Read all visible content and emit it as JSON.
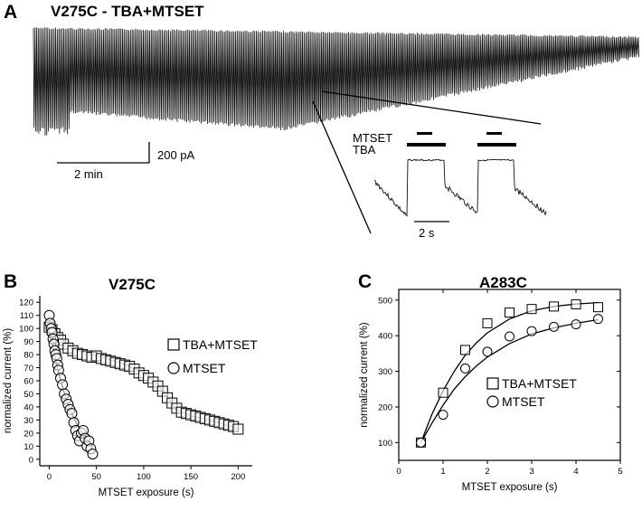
{
  "panel_a": {
    "letter": "A",
    "title": "V275C - TBA+MTSET",
    "time_scale_label": "2 min",
    "current_scale_label": "200 pA",
    "inset": {
      "mtset_label": "MTSET",
      "tba_label": "TBA",
      "time_scale_label": "2 s"
    }
  },
  "panel_b": {
    "letter": "B"
  },
  "panel_c": {
    "letter": "C"
  },
  "chart_data": [
    {
      "type": "scatter",
      "title": "V275C",
      "xlabel": "MTSET exposure (s)",
      "ylabel": "normalized current (%)",
      "xlim": [
        -10,
        215
      ],
      "ylim": [
        -5,
        125
      ],
      "xticks": [
        0,
        50,
        100,
        150,
        200
      ],
      "yticks": [
        0,
        10,
        20,
        30,
        40,
        50,
        60,
        70,
        80,
        90,
        100,
        110,
        120
      ],
      "legend_position": "right",
      "series": [
        {
          "name": "TBA+MTSET",
          "marker": "square",
          "x": [
            0,
            3,
            6,
            9,
            12,
            15,
            20,
            25,
            30,
            35,
            40,
            45,
            50,
            55,
            60,
            65,
            70,
            75,
            80,
            85,
            90,
            95,
            100,
            105,
            110,
            115,
            120,
            125,
            130,
            135,
            140,
            145,
            150,
            155,
            160,
            165,
            170,
            175,
            180,
            185,
            190,
            195,
            200
          ],
          "y": [
            101,
            99,
            96,
            93,
            91,
            88,
            85,
            83,
            81,
            80,
            79,
            78,
            79,
            77,
            76,
            75,
            74,
            73,
            72,
            71,
            69,
            66,
            64,
            62,
            59,
            56,
            52,
            47,
            43,
            39,
            36,
            35,
            34,
            33,
            32,
            31,
            30,
            29,
            28,
            27,
            26,
            25,
            23
          ]
        },
        {
          "name": "MTSET",
          "marker": "circle",
          "x": [
            0,
            1,
            2,
            3,
            4,
            5,
            6,
            7,
            8,
            9,
            10,
            12,
            14,
            16,
            18,
            20,
            22,
            24,
            26,
            28,
            30,
            32,
            34,
            36,
            38,
            40,
            42,
            44,
            46
          ],
          "y": [
            110,
            104,
            100,
            97,
            92,
            88,
            83,
            80,
            77,
            72,
            68,
            62,
            57,
            50,
            46,
            42,
            38,
            35,
            28,
            22,
            18,
            14,
            20,
            22,
            16,
            10,
            14,
            8,
            4
          ]
        }
      ],
      "fits": [
        {
          "series": "TBA+MTSET",
          "x": [
            0,
            25,
            50,
            75,
            100,
            115,
            125,
            135,
            150,
            175,
            200
          ],
          "y": [
            101,
            84,
            79,
            74,
            66,
            57,
            48,
            38,
            33,
            29,
            23
          ]
        },
        {
          "series": "MTSET",
          "x": [
            0,
            5,
            10,
            15,
            20,
            25,
            30,
            35,
            40,
            45
          ],
          "y": [
            100,
            82,
            66,
            53,
            42,
            33,
            26,
            20,
            15,
            11
          ]
        }
      ]
    },
    {
      "type": "scatter",
      "title": "A283C",
      "xlabel": "MTSET exposure (s)",
      "ylabel": "normalized current (%)",
      "xlim": [
        0,
        5
      ],
      "ylim": [
        50,
        530
      ],
      "xticks": [
        0,
        1,
        2,
        3,
        4,
        5
      ],
      "yticks": [
        100,
        200,
        300,
        400,
        500
      ],
      "legend_position": "bottom-right",
      "series": [
        {
          "name": "TBA+MTSET",
          "marker": "square",
          "x": [
            0.5,
            1.0,
            1.5,
            2.0,
            2.5,
            3.0,
            3.5,
            4.0,
            4.5
          ],
          "y": [
            100,
            240,
            360,
            435,
            465,
            475,
            482,
            488,
            480
          ]
        },
        {
          "name": "MTSET",
          "marker": "circle",
          "x": [
            0.5,
            1.0,
            1.5,
            2.0,
            2.5,
            3.0,
            3.5,
            4.0,
            4.5
          ],
          "y": [
            100,
            178,
            308,
            355,
            398,
            413,
            425,
            432,
            447
          ]
        }
      ],
      "fits": [
        {
          "series": "TBA+MTSET",
          "x": [
            0.5,
            0.75,
            1.0,
            1.25,
            1.5,
            1.75,
            2.0,
            2.5,
            3.0,
            3.5,
            4.0,
            4.5
          ],
          "y": [
            100,
            180,
            245,
            300,
            345,
            380,
            408,
            447,
            470,
            482,
            489,
            493
          ]
        },
        {
          "series": "MTSET",
          "x": [
            0.5,
            0.75,
            1.0,
            1.25,
            1.5,
            1.75,
            2.0,
            2.5,
            3.0,
            3.5,
            4.0,
            4.5
          ],
          "y": [
            100,
            155,
            205,
            250,
            285,
            315,
            340,
            378,
            405,
            422,
            435,
            445
          ]
        }
      ]
    }
  ]
}
